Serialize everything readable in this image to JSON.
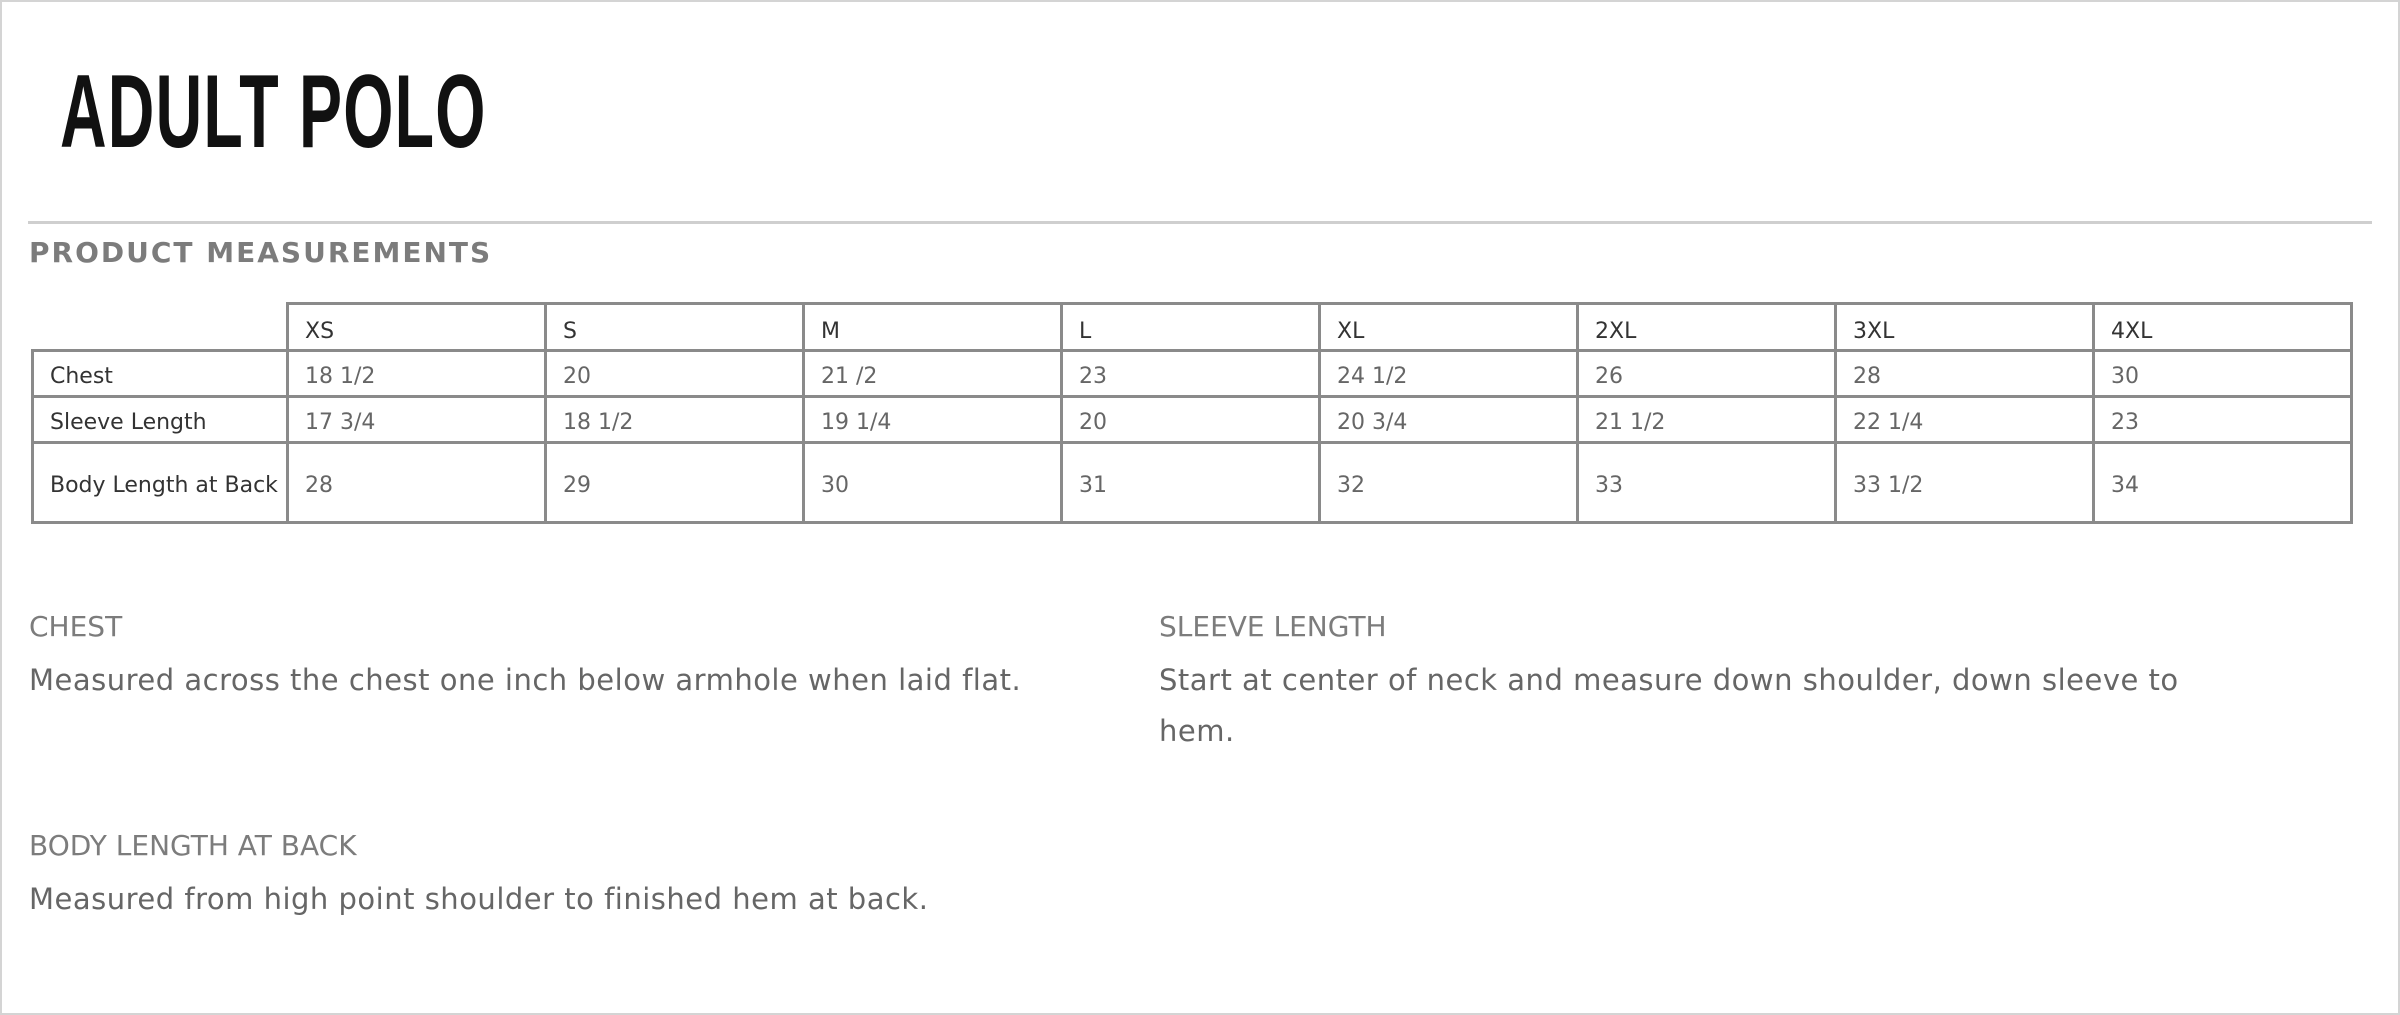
{
  "title": "ADULT POLO",
  "section_title": "PRODUCT MEASUREMENTS",
  "table": {
    "sizes": [
      "XS",
      "S",
      "M",
      "L",
      "XL",
      "2XL",
      "3XL",
      "4XL"
    ],
    "rows": [
      {
        "label": "Chest",
        "values": [
          "18 1/2",
          "20",
          "21 /2",
          "23",
          "24 1/2",
          "26",
          "28",
          "30"
        ]
      },
      {
        "label": "Sleeve Length",
        "values": [
          "17 3/4",
          "18 1/2",
          "19 1/4",
          "20",
          "20 3/4",
          "21 1/2",
          "22 1/4",
          "23"
        ]
      },
      {
        "label": "Body Length at Back",
        "values": [
          "28",
          "29",
          "30",
          "31",
          "32",
          "33",
          "33 1/2",
          "34"
        ]
      }
    ]
  },
  "descriptions": {
    "chest": {
      "heading": "CHEST",
      "text": "Measured across the chest one inch below armhole when laid flat."
    },
    "sleeve": {
      "heading": "SLEEVE LENGTH",
      "text": "Start at center of neck and measure down shoulder, down sleeve to hem."
    },
    "body": {
      "heading": "BODY LENGTH AT BACK",
      "text": "Measured from high point shoulder to finished hem at back."
    }
  }
}
